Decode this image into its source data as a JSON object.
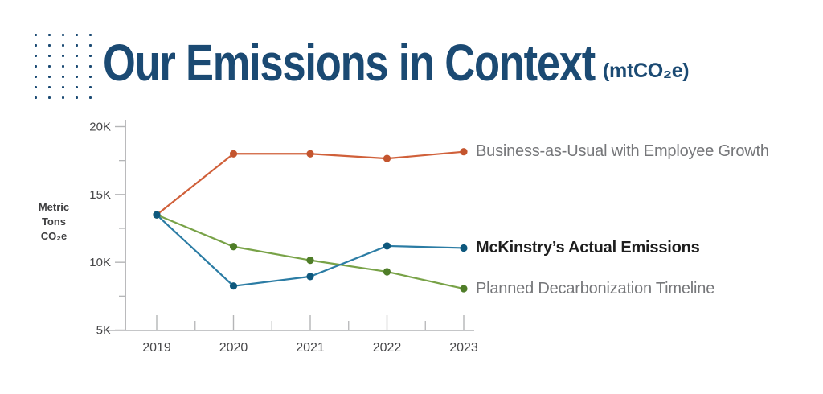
{
  "header": {
    "title": "Our Emissions in Context",
    "subtitle": "(mtCO₂e)",
    "title_color": "#1B4A73"
  },
  "decoration": {
    "dot_grid_color": "#1B4A73"
  },
  "chart_data": {
    "type": "line",
    "title": "Our Emissions in Context (mtCO₂e)",
    "x": [
      2019,
      2020,
      2021,
      2022,
      2023
    ],
    "xlabel": "",
    "ylabel": "Metric Tons CO₂e",
    "ylabel_lines": [
      "Metric",
      "Tons",
      "CO₂e"
    ],
    "ylim": [
      5000,
      20000
    ],
    "ytick_values": [
      5000,
      10000,
      15000,
      20000
    ],
    "ytick_labels": [
      "5K",
      "10K",
      "15K",
      "20K"
    ],
    "minor_ytick_values": [
      7500,
      12500,
      17500
    ],
    "grid": false,
    "legend_position": "right-of-line-end",
    "series": [
      {
        "name": "Business-as-Usual with Employee Growth",
        "values": [
          13500,
          18000,
          18000,
          17650,
          18150
        ],
        "color": "#D0603A",
        "marker_color": "#C4552E",
        "label_color": "#76777A",
        "label_bold": false
      },
      {
        "name": "McKinstry’s Actual Emissions",
        "values": [
          13500,
          8250,
          8950,
          11200,
          11050
        ],
        "color": "#2B7CA4",
        "marker_color": "#0E587D",
        "label_color": "#1E1E1E",
        "label_bold": true
      },
      {
        "name": "Planned Decarbonization Timeline",
        "values": [
          13500,
          11150,
          10150,
          9300,
          8050
        ],
        "color": "#78A247",
        "marker_color": "#4F7D28",
        "label_color": "#76777A",
        "label_bold": false
      }
    ]
  }
}
